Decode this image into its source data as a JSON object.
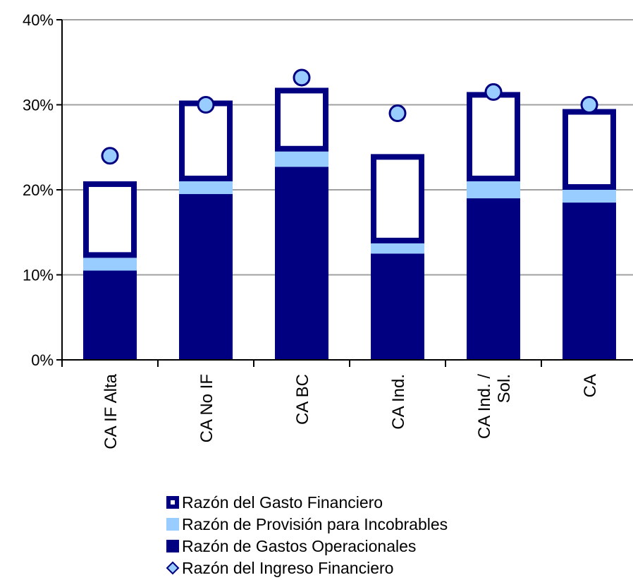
{
  "chart_data": {
    "type": "bar",
    "stacked": true,
    "categories": [
      "CA IF Alta",
      "CA No IF",
      "CA BC",
      "CA Ind.",
      "CA Ind. / Sol.",
      "CA"
    ],
    "category_lines": [
      [
        "CA IF Alta"
      ],
      [
        "CA No IF"
      ],
      [
        "CA BC"
      ],
      [
        "CA Ind."
      ],
      [
        "CA Ind. /",
        "Sol."
      ],
      [
        "CA"
      ]
    ],
    "series": [
      {
        "name": "Razón de Gastos Operacionales",
        "kind": "bar",
        "color": "#000080",
        "values": [
          10.5,
          19.5,
          22.7,
          12.5,
          19.0,
          18.5
        ]
      },
      {
        "name": "Razón de Provisión para Incobrables",
        "kind": "bar",
        "color": "#99ccff",
        "values": [
          1.5,
          1.5,
          1.8,
          1.2,
          2.0,
          1.5
        ]
      },
      {
        "name": "Razón del Gasto Financiero",
        "kind": "bar",
        "color": "#ffffff",
        "border": "#000080",
        "values": [
          9.0,
          9.5,
          7.5,
          10.5,
          10.5,
          9.5
        ]
      },
      {
        "name": "Razón del Ingreso Financiero",
        "kind": "marker",
        "color": "#99ccff",
        "border": "#000080",
        "values": [
          24.0,
          30.0,
          33.2,
          29.0,
          31.5,
          30.0
        ]
      }
    ],
    "ylim": [
      0,
      40
    ],
    "yticks": [
      "0%",
      "10%",
      "20%",
      "30%",
      "40%"
    ],
    "grid": true,
    "legend_position": "bottom",
    "legend_order": [
      "Razón del Gasto Financiero",
      "Razón de Provisión para Incobrables",
      "Razón de Gastos Operacionales",
      "Razón del Ingreso Financiero"
    ]
  }
}
